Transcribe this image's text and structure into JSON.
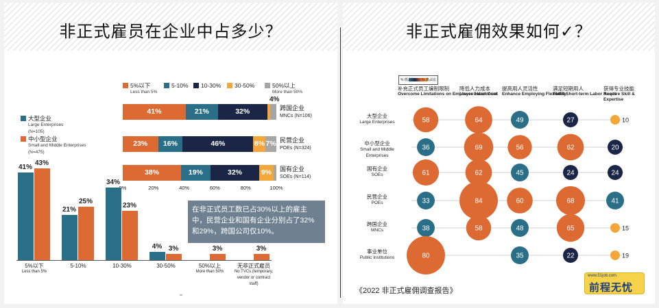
{
  "left_title": "非正式雇员在企业中占多少？",
  "right_title": "非正式雇佣效果如何✓？",
  "colors": {
    "orange": "#dd6a33",
    "teal": "#2a6f87",
    "navy": "#1b2545",
    "yellow": "#f3a63a",
    "gray": "#a6a6a6"
  },
  "callout": "在非正式员工数已占30%以上的雇主中，民营企业和国有企业分别占了32%和29%，跨国公司仅10%。",
  "source": "《2022 非正式雇佣调查报告》",
  "logo": {
    "url": "www.51job.com",
    "name": "前程无忧"
  },
  "chart_data": [
    {
      "type": "bar",
      "orientation": "horizontal",
      "stacked": true,
      "xlim": [
        0,
        100
      ],
      "x_ticks": [
        "0%",
        "20%",
        "40%",
        "60%",
        "80%",
        "100%"
      ],
      "legend": [
        {
          "cn": "5%以下",
          "en": "Less than 5%",
          "color": "#dd6a33"
        },
        {
          "cn": "5-10%",
          "en": "",
          "color": "#2a6f87"
        },
        {
          "cn": "10-30%",
          "en": "",
          "color": "#1b2545"
        },
        {
          "cn": "30-50%",
          "en": "",
          "color": "#f3a63a"
        },
        {
          "cn": "50%以上",
          "en": "More than 50%",
          "color": "#a6a6a6"
        }
      ],
      "categories": [
        {
          "cn": "跨国企业",
          "en": "MNCs (N=106)"
        },
        {
          "cn": "民营企业",
          "en": "POEs (N=324)"
        },
        {
          "cn": "国有企业",
          "en": "SOEs (N=114)"
        }
      ],
      "series": [
        {
          "name": "5%以下",
          "values": [
            41,
            23,
            38
          ]
        },
        {
          "name": "5-10%",
          "values": [
            21,
            16,
            19
          ]
        },
        {
          "name": "10-30%",
          "values": [
            32,
            46,
            32
          ]
        },
        {
          "name": "30-50%",
          "values": [
            2,
            8,
            9
          ]
        },
        {
          "name": "50%以上",
          "values": [
            4,
            7,
            2
          ]
        }
      ],
      "data_labels": [
        [
          "41%",
          "21%",
          "32%",
          "",
          "4%"
        ],
        [
          "23%",
          "16%",
          "46%",
          "8%",
          "7%"
        ],
        [
          "38%",
          "19%",
          "32%",
          "9%",
          ""
        ]
      ]
    },
    {
      "type": "bar",
      "orientation": "vertical",
      "legend": [
        {
          "cn": "大型企业",
          "en": "Large Enterprises",
          "n": "(N=105)",
          "color": "#2a6f87"
        },
        {
          "cn": "中小型企业",
          "en": "Small and Middle Enterprises",
          "n": "(N=475)",
          "color": "#dd6a33"
        }
      ],
      "categories": [
        {
          "cn": "5%以下",
          "en": "Less than 5%"
        },
        {
          "cn": "5-10%",
          "en": ""
        },
        {
          "cn": "10-30%",
          "en": ""
        },
        {
          "cn": "30-50%",
          "en": ""
        },
        {
          "cn": "50%以上",
          "en": "More than 50%"
        },
        {
          "cn": "无非正式雇员",
          "en": "No TVCs (temporary, vendor or contract staff)"
        }
      ],
      "series": [
        {
          "name": "大型企业",
          "values": [
            41,
            21,
            34,
            4,
            null,
            null
          ]
        },
        {
          "name": "中小型企业",
          "values": [
            43,
            25,
            23,
            3,
            3,
            3
          ]
        }
      ],
      "ylim": [
        0,
        50
      ]
    },
    {
      "type": "bubble",
      "legend_labels": [
        "% 低占比",
        "% 高占比"
      ],
      "columns": [
        {
          "cn": "补充正式员工编制限制",
          "en": "Overcome Limitations on Employee Headcount"
        },
        {
          "cn": "降低人力成本",
          "en": "Lower Labor Cost"
        },
        {
          "cn": "提高用人灵活性",
          "en": "Enhance Employing Flexibility"
        },
        {
          "cn": "满足短期用人",
          "en": "Fulfill Short-term Labor Needs"
        },
        {
          "cn": "获得专业技能",
          "en": "Acquire Skill & Expertise"
        }
      ],
      "rows": [
        {
          "cn": "大型企业",
          "en": "Large Enterprises",
          "values": [
            58,
            64,
            49,
            27,
            10
          ]
        },
        {
          "cn": "中小型企业",
          "en": "Small and Middle Enterprises",
          "values": [
            36,
            69,
            56,
            62,
            20
          ]
        },
        {
          "cn": "国有企业",
          "en": "SOEs",
          "values": [
            61,
            62,
            45,
            24,
            24
          ]
        },
        {
          "cn": "民营企业",
          "en": "POEs",
          "values": [
            33,
            84,
            60,
            68,
            41
          ]
        },
        {
          "cn": "跨国企业",
          "en": "MNCs",
          "values": [
            38,
            58,
            48,
            65,
            15
          ]
        },
        {
          "cn": "事业单位",
          "en": "Public Institutions",
          "values": [
            80,
            null,
            35,
            22,
            19
          ]
        }
      ]
    }
  ]
}
